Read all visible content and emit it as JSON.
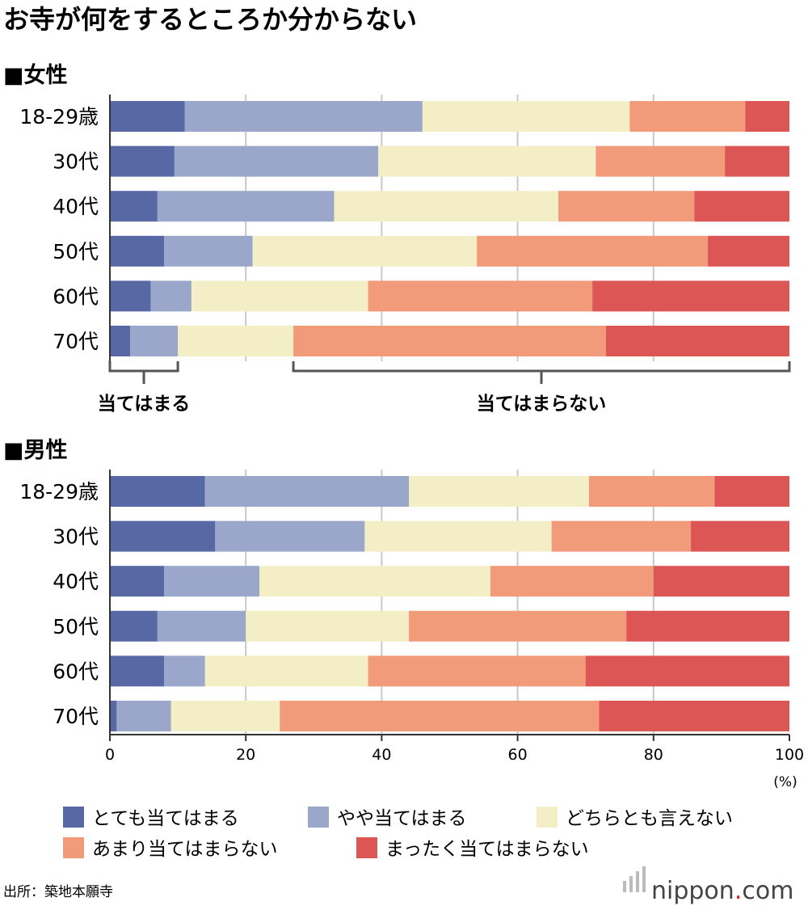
{
  "colors": {
    "c1": "#5868a5",
    "c2": "#9aa7cb",
    "c3": "#f3eec6",
    "c4": "#f29b7b",
    "c5": "#dc5656",
    "grid": "#c8c8c8",
    "axis": "#333333",
    "bracket": "#555555",
    "brand": "#444444",
    "brand_dot": "#d8212b"
  },
  "header": {
    "title": "お寺が何をするところか分からない",
    "source": "出所：築地本願寺",
    "brand": {
      "name": "nippon",
      "dot": ".",
      "tld": "com"
    }
  },
  "brackets": {
    "applies": "当てはまる",
    "not_applies": "当てはまらない"
  },
  "chart_data": {
    "type": "bar",
    "orientation": "horizontal",
    "stacked": true,
    "x_ticks": [
      "0",
      "20",
      "40",
      "60",
      "80",
      "100"
    ],
    "x_unit": "(%)",
    "xlim": [
      0,
      100
    ],
    "grid": true,
    "legend_position": "bottom",
    "categories": [
      "18-29歳",
      "30代",
      "40代",
      "50代",
      "60代",
      "70代"
    ],
    "legend": [
      "とても当てはまる",
      "やや当てはまる",
      "どちらとも言えない",
      "あまり当てはまらない",
      "まったく当てはまらない"
    ],
    "panels": [
      {
        "title": "■女性",
        "series": [
          {
            "name": "とても当てはまる",
            "values": [
              11,
              9.5,
              7,
              8,
              6,
              3
            ]
          },
          {
            "name": "やや当てはまる",
            "values": [
              35,
              30,
              26,
              13,
              6,
              7
            ]
          },
          {
            "name": "どちらとも言えない",
            "values": [
              30.5,
              32,
              33,
              33,
              26,
              17
            ]
          },
          {
            "name": "あまり当てはまらない",
            "values": [
              17,
              19,
              20,
              34,
              33,
              46
            ]
          },
          {
            "name": "まったく当てはまらない",
            "values": [
              6.5,
              9.5,
              14,
              12,
              29,
              27
            ]
          }
        ]
      },
      {
        "title": "■男性",
        "series": [
          {
            "name": "とても当てはまる",
            "values": [
              14,
              15.5,
              8,
              7,
              8,
              1
            ]
          },
          {
            "name": "やや当てはまる",
            "values": [
              30,
              22,
              14,
              13,
              6,
              8
            ]
          },
          {
            "name": "どちらとも言えない",
            "values": [
              26.5,
              27.5,
              34,
              24,
              24,
              16
            ]
          },
          {
            "name": "あまり当てはまらない",
            "values": [
              18.5,
              20.5,
              24,
              32,
              32,
              47
            ]
          },
          {
            "name": "まったく当てはまらない",
            "values": [
              11,
              14.5,
              20,
              24,
              30,
              28
            ]
          }
        ]
      }
    ]
  }
}
